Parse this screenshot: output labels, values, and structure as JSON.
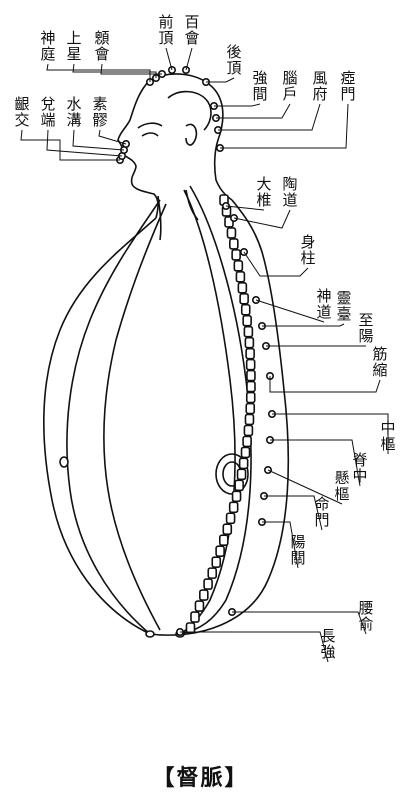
{
  "figure": {
    "caption": "【督脈】",
    "points": [
      {
        "id": "shenting",
        "label": "神庭"
      },
      {
        "id": "shangxing",
        "label": "上星"
      },
      {
        "id": "xinhui",
        "label": "顖會"
      },
      {
        "id": "qianding",
        "label": "前頂"
      },
      {
        "id": "baihui",
        "label": "百會"
      },
      {
        "id": "houding",
        "label": "後頂"
      },
      {
        "id": "qiangjian",
        "label": "強間"
      },
      {
        "id": "naohu",
        "label": "腦戶"
      },
      {
        "id": "fengfu",
        "label": "風府"
      },
      {
        "id": "yamen",
        "label": "瘂門"
      },
      {
        "id": "yinjiao",
        "label": "齦交"
      },
      {
        "id": "duiduan",
        "label": "兌端"
      },
      {
        "id": "shuigou",
        "label": "水溝"
      },
      {
        "id": "suliao",
        "label": "素髎"
      },
      {
        "id": "dazhui",
        "label": "大椎"
      },
      {
        "id": "taodao",
        "label": "陶道"
      },
      {
        "id": "shenzhu",
        "label": "身柱"
      },
      {
        "id": "shendao",
        "label": "神道"
      },
      {
        "id": "lingtai",
        "label": "靈臺"
      },
      {
        "id": "zhiyang",
        "label": "至陽"
      },
      {
        "id": "jinsuo",
        "label": "筋縮"
      },
      {
        "id": "zhongshu",
        "label": "中樞"
      },
      {
        "id": "jizhong",
        "label": "脊中"
      },
      {
        "id": "xuanshu",
        "label": "懸樞"
      },
      {
        "id": "mingmen",
        "label": "命門"
      },
      {
        "id": "yangguan",
        "label": "陽關"
      },
      {
        "id": "yaoshu",
        "label": "腰俞"
      },
      {
        "id": "changqiang",
        "label": "長強"
      }
    ]
  }
}
